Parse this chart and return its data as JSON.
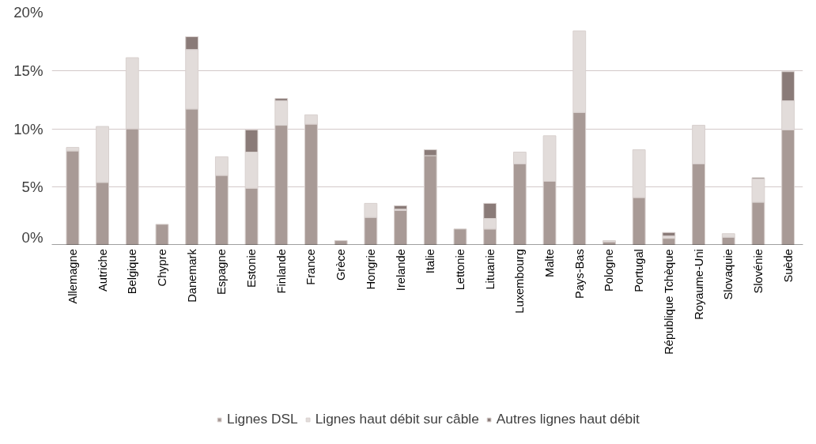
{
  "chart_data": {
    "type": "bar",
    "stacked": true,
    "categories": [
      "Allemagne",
      "Autriche",
      "Belgique",
      "Chypre",
      "Danemark",
      "Espagne",
      "Estonie",
      "Finlande",
      "France",
      "Grèce",
      "Hongrie",
      "Irelande",
      "Italie",
      "Lettonie",
      "Lituanie",
      "Luxembourg",
      "Malte",
      "Pays-Bas",
      "Pologne",
      "Portugal",
      "République Tchèque",
      "Royaume-Uni",
      "Slovaquie",
      "Slovénie",
      "Suède"
    ],
    "series": [
      {
        "name": "Lignes DSL",
        "color": "#a89a96",
        "values": [
          8.1,
          5.4,
          10.0,
          1.8,
          11.7,
          6.0,
          4.9,
          10.3,
          10.4,
          0.4,
          2.4,
          3.0,
          7.7,
          1.4,
          1.4,
          7.0,
          5.5,
          11.4,
          0.3,
          4.1,
          0.6,
          7.0,
          0.7,
          3.7,
          9.9
        ]
      },
      {
        "name": "Lignes haut débit sur câble",
        "color": "#e2dcda",
        "values": [
          0.3,
          4.8,
          6.1,
          null,
          5.1,
          1.6,
          3.1,
          2.1,
          0.8,
          null,
          1.2,
          0.1,
          null,
          null,
          0.9,
          1.0,
          3.9,
          7.0,
          0.1,
          4.1,
          0.2,
          3.3,
          0.3,
          2.0,
          2.5
        ]
      },
      {
        "name": "Autres lignes haut débit",
        "color": "#8a7b78",
        "values": [
          null,
          null,
          null,
          null,
          1.1,
          null,
          1.9,
          0.2,
          null,
          null,
          null,
          0.3,
          0.5,
          null,
          1.3,
          null,
          null,
          null,
          null,
          null,
          0.3,
          null,
          null,
          0.1,
          2.5
        ]
      }
    ],
    "ylim": [
      0,
      20
    ],
    "yticks": [
      {
        "value": 0,
        "label": "0%"
      },
      {
        "value": 5,
        "label": "5%"
      },
      {
        "value": 10,
        "label": "10%"
      },
      {
        "value": 15,
        "label": "15%"
      },
      {
        "value": 20,
        "label": "20%"
      }
    ],
    "grid": "y",
    "legend": "bottom"
  }
}
